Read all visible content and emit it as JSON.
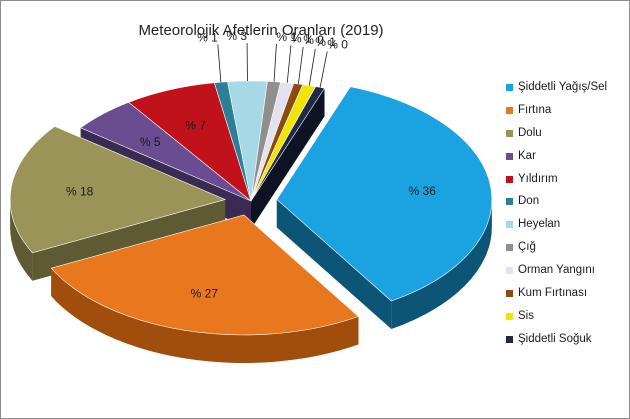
{
  "chart_data": {
    "type": "pie",
    "title": "Meteorolojik Afetlerin Oranları (2019)",
    "legend_position": "right",
    "slices": [
      {
        "label": "Şiddetli Yağış/Sel",
        "value": 36,
        "value_text": "% 36",
        "color": "#1aa3e0",
        "side_color": "#0c5577",
        "exploded": true
      },
      {
        "label": "Fırtına",
        "value": 27,
        "value_text": "% 27",
        "color": "#e8771e",
        "side_color": "#a14d0b",
        "exploded": true
      },
      {
        "label": "Dolu",
        "value": 18,
        "value_text": "% 18",
        "color": "#9a9458",
        "side_color": "#5e5a34",
        "exploded": true
      },
      {
        "label": "Kar",
        "value": 5,
        "value_text": "% 5",
        "color": "#6a4c90",
        "side_color": "#3b2a52",
        "exploded": false
      },
      {
        "label": "Yıldırım",
        "value": 7,
        "value_text": "% 7",
        "color": "#c1121b",
        "side_color": "#6f080d",
        "exploded": false
      },
      {
        "label": "Don",
        "value": 1,
        "value_text": "% 1",
        "color": "#2c7f95",
        "side_color": "#184653",
        "exploded": false
      },
      {
        "label": "Heyelan",
        "value": 3,
        "value_text": "% 3",
        "color": "#a7d8e6",
        "side_color": "#5f8b97",
        "exploded": false
      },
      {
        "label": "Çığ",
        "value": 1,
        "value_text": "% 1",
        "color": "#8f8f8f",
        "side_color": "#4f4f4f",
        "exploded": false
      },
      {
        "label": "Orman Yangını",
        "value": 1,
        "value_text": "% 1",
        "color": "#e5e0ee",
        "side_color": "#8f8a9b",
        "exploded": false
      },
      {
        "label": "Kum Fırtınası",
        "value": 0,
        "value_text": "% 0",
        "color": "#8a4b12",
        "side_color": "#4c2908",
        "exploded": false
      },
      {
        "label": "Sis",
        "value": 1,
        "value_text": "% 1",
        "color": "#f2e600",
        "side_color": "#8f8800",
        "exploded": false
      },
      {
        "label": "Şiddetli Soğuk",
        "value": 0,
        "value_text": "% 0",
        "color": "#1f2a44",
        "side_color": "#0d1322",
        "exploded": false
      }
    ]
  }
}
